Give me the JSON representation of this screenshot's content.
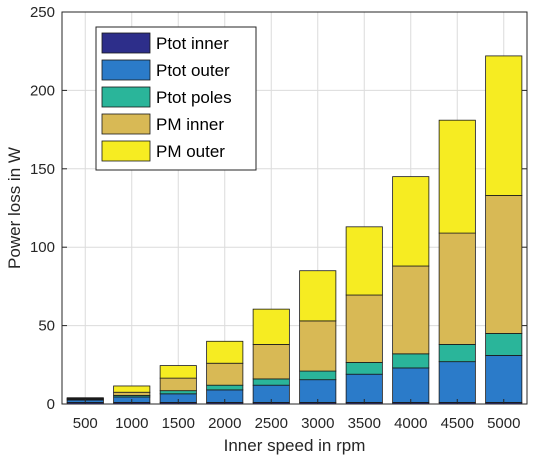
{
  "chart_data": {
    "type": "bar",
    "stacked": true,
    "categories": [
      "500",
      "1000",
      "1500",
      "2000",
      "2500",
      "3000",
      "3500",
      "4000",
      "4500",
      "5000"
    ],
    "series": [
      {
        "name": "Ptot inner",
        "color": "#2d2e8a",
        "values": [
          1,
          1,
          1,
          1,
          1,
          1,
          1,
          1,
          1,
          1
        ]
      },
      {
        "name": "Ptot outer",
        "color": "#2b7bc9",
        "values": [
          1.5,
          3.5,
          5.5,
          8,
          11,
          14.5,
          18,
          22,
          26,
          30
        ]
      },
      {
        "name": "Ptot poles",
        "color": "#2ab59a",
        "values": [
          0.5,
          1,
          2,
          3,
          4,
          5.5,
          7.5,
          9,
          11,
          14
        ]
      },
      {
        "name": "PM inner",
        "color": "#d8b955",
        "values": [
          0.5,
          2,
          8,
          14,
          22,
          32,
          43,
          56,
          71,
          88
        ]
      },
      {
        "name": "PM outer",
        "color": "#f6ec22",
        "values": [
          0.5,
          4,
          8,
          14,
          22.5,
          32,
          43.5,
          57,
          72,
          89
        ]
      }
    ],
    "xlabel": "Inner speed in rpm",
    "ylabel": "Power loss in W",
    "ylim": [
      0,
      250
    ],
    "yticks": [
      0,
      50,
      100,
      150,
      200,
      250
    ],
    "grid": true,
    "legend": "top-left"
  }
}
